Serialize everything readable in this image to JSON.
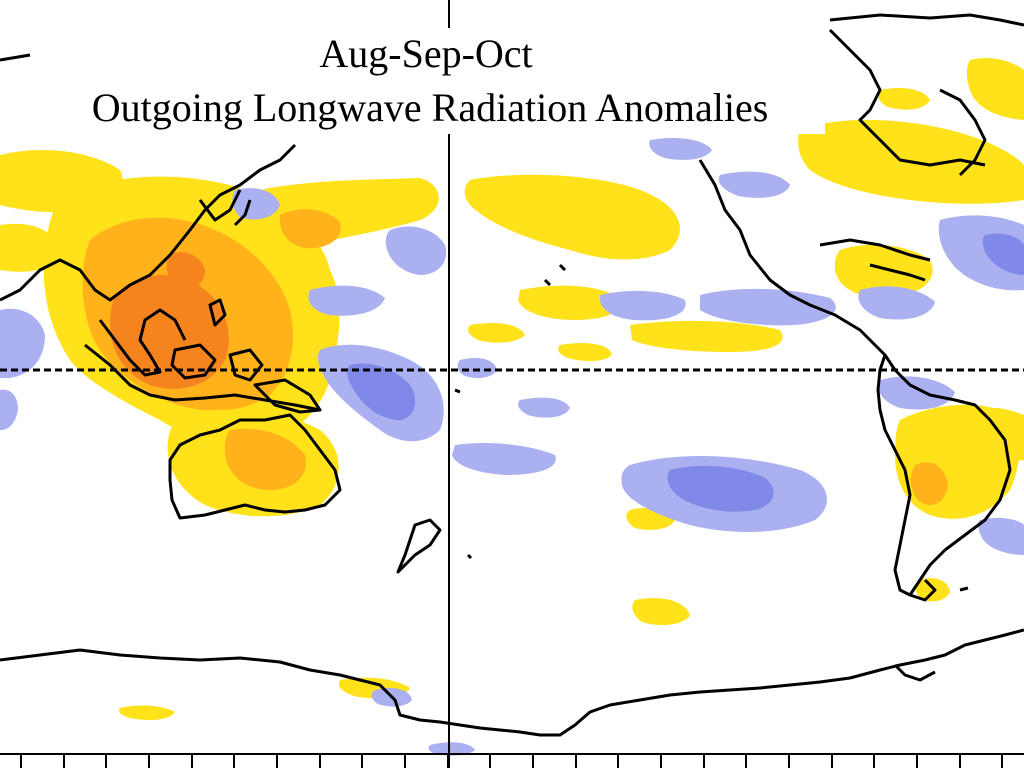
{
  "title": {
    "line1": "Aug-Sep-Oct",
    "line2": "Outgoing Longwave Radiation Anomalies"
  },
  "colors": {
    "positive_light": "#ffe21a",
    "positive_mid": "#ffb21a",
    "positive_strong": "#f5841f",
    "negative_light": "#aab0f0",
    "negative_mid": "#8088e8",
    "coastline": "#000000",
    "background": "#ffffff"
  },
  "map": {
    "equator_line": "dashed",
    "date_line_marker": "solid vertical line at 180°",
    "bottom_tick_count": 24
  }
}
